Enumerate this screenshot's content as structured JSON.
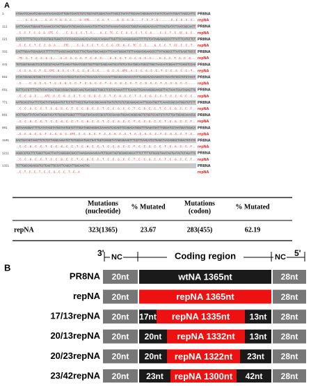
{
  "panel_a": {
    "label": "A",
    "alignment": [
      {
        "number": "1",
        "seq": "ATGAATCCAAATCAGAAAATAACAACCATTGGATCAATCTGTCTGGTAGTCGGACTAATTAGCCTAATATTGCAAATAGGGAATATAATCTCAATATGGATTAGCCATTC",
        "name": "PR8NA"
      },
      {
        "number": "",
        "seq": "......C..C..G.....C..C..T..G..C..C.....G..CTC.....C..C..T.....G..C..C..G.....T..C..T..G........C..C..G..C..C..",
        "name": "repNA"
      },
      {
        "number": "111",
        "seq": "AATTCAAACTGGAAGTCAAAACCATACTGGAATATGCAACCAAAACATCATTACCTATAAAAATAGCACCTGGGTAAAGGACACAACTTCAGTGATATTAACCGGCAATT",
        "name": "PR8NA"
      },
      {
        "number": "",
        "seq": "..C..C..T..C..G..G..CTC..C.....C..G..C..C..T..C.....G..C..TC..C..C..G..C..C..T..C..G.....C..C..T..C..CC..G..C..",
        "name": "repNA"
      },
      {
        "number": "221",
        "seq": "CATCTCTTTGTCCCATCCGTGGGTGGGCTATATACAGCAAAGACAATAGCATAAGAATTGGTTCCAAAGGAGACGTTTTTGTCATAAGAGAGCCCTTTATTTCATGTTCT",
        "name": "PR8NA"
      },
      {
        "number": "",
        "seq": "..C..C..C..T..C..C..G..A.....CTC.....C..G..C..C..T..C..C..G..CC..G..C..TC..C..C.....G..C..C..T..CC..C..C..T..",
        "name": "repNA"
      },
      {
        "number": "331",
        "seq": "CACTTGGAATGCAGGACCTTTTTCTTGACCCAAGGTGCCTTACTGAATGACAAGCATTCAAATGGGACTGTTAAGGACAGAAGCCCTTATAGGGCCTTAATGAGCTGCCC",
        "name": "PR8NA"
      },
      {
        "number": "",
        "seq": "..TC..C..T..C..C..G..C.....C..C..G..C..C..T..C..G..C.....G..C..C..T..C..C..G..C..C.....G..C..C..T..C..C..G...",
        "name": "repNA"
      },
      {
        "number": "441",
        "seq": "TGTCGGTGAAGCTCCGTCCCGTACAATTCAAGATTGAATCGGTTGCTTGGTCAGCAAGTGCATGTCATGATGGCATGGGCTGGCTAACAATCGGAATTTCAGGTCCAG",
        "name": "PR8NA"
      },
      {
        "number": "",
        "seq": "..C..C..G..C..T..C..CTC..G..C..C..T..C..C..G..C..C.....G..C..C..GTC..A..C..C..G..C..C..T..C..C..G..C..C..T..",
        "name": "repNA"
      },
      {
        "number": "551",
        "seq": "ATAATGGAGCAGTGGCTGTATTAAAATACAATGGCATAATAACTGAAACCATAAAAAGTTGGAGGAAGAAAATATTGAGGACACAAGAGTCTGAATGTGCCTGTGTAAAT",
        "name": "PR8NA"
      },
      {
        "number": "",
        "seq": "..C.....C..G..C..C..T..C..C..G..C..C..T..C..G..C..C..T..C..C..G..C..C..T..C..G..C..C..T..C..C..G..C..C.....",
        "name": "repNA"
      },
      {
        "number": "661",
        "seq": "GGTTCATGTTTTACTATAATGACTGGCCCGGATGGGCCAAGTGACGGGCTGGCCTCGTACAAAATTTTCAAGATCGAAAAGGGGAAGGTTACTAAATCAATAGAGTTG",
        "name": "PR8NA"
      },
      {
        "number": "",
        "seq": "..C..C..G..C.....ATC..C..C..G..C..C..T..C..C..G..C..C..T..C..G..C..C..T..C..C..G..C..C..T..C..C..G..C..C..",
        "name": "repNA"
      },
      {
        "number": "771",
        "seq": "AATGCACCTAATTCTCACTATGAGGAATGTTCCTGTTACCCTGATACCGGCAAAGTGATGTGTGTGTGCAGAGACAATTGGCATGGTTCAAACCGGCCATGGGTGTCTT",
        "name": "PR8NA"
      },
      {
        "number": "",
        "seq": "..C..C..G..C..C..T..C..G..C..C..T..C..C..G..C..C..T..C..C..G..C..C..T..C..G..C..C..T..C..C..G..C..C..T..",
        "name": "repNA"
      },
      {
        "number": "881",
        "seq": "ACCTGGATTATCAATAGGATACATCTGCAGTGGGGTTTTCGGTGACAACCCGCGTCCCGAAGATGGAACAGGCAGCTGTGGTCCAGTGTATGTTGATGGAGCAAACGG",
        "name": "PR8NA"
      },
      {
        "number": "",
        "seq": "..C..C..G..C..C..T..C..C..G..C..C..T..C..G..C..C..T..C..C..G..C..C..T..C..C..G..C..C..T..C..G..C..C..T..",
        "name": "repNA"
      },
      {
        "number": "991",
        "seq": "AGTAAAGGGATTTTCATATAGGTATGGTAATGGTGTTTGGATAGGAAGGACCAAAAGTCACAGTTCCAGACATGGGTTTGAGATGATTTGGGATCCTAATGGATGGACA",
        "name": "PR8NA"
      },
      {
        "number": "",
        "seq": "..C..C..G..C..C..T..C..C..G..C..GTC..C..C..G..C..T..C..C..G..C..C..T..C..C..G..C..C..T..C..G..C..C..T..C..",
        "name": "repNA"
      },
      {
        "number": "1101",
        "seq": "GACTGATAGTAAGTTCTCTGTTAGGCAAGATGTTGTGGCAATGACTGATTGGTCAGGGTATAGCGGAAGTTTCGTTCAACATCCTGAGCTAACAGGGCTAGACTGTATG",
        "name": "PR8NA"
      },
      {
        "number": "",
        "seq": "..C..C..G..C..C..T..C..C..G..C..C..T..C..G..C..C..T..C..C..G..C..C..T..C..C..G..C..C..T..C..G..C..C..T..",
        "name": "repNA"
      },
      {
        "number": "1211",
        "seq": "AGGCCGTGCTTCTGGGTTGAATTAATCAGGGGACGACCTAAAGAAAAAACAATCTGGACTAGTGCGAGCAGCATTTCTTTTTGTGGCGTGAATAGTGATACTGTAGATTG",
        "name": "PR8NA"
      },
      {
        "number": "",
        "seq": "..C..C..G..C..C..T..C..C..G..C..C..T..C..G..C..C..T..C..C..G..C..C..T..C..C..G..C..C..T..C..G..C..C..T..",
        "name": "repNA"
      },
      {
        "number": "1321",
        "seq": "TCTTGGCCAGACGGTGCTGAGTTGCCATTCAGCATTGACAAGTAG",
        "name": "PR8NA"
      },
      {
        "number": "",
        "seq": "..C..T..C..C..T..C..C..G..C..C..T..C..A",
        "name": "repNA"
      }
    ],
    "table": {
      "headers": [
        [],
        [
          "Mutations",
          "(nucleotide)"
        ],
        [
          "% Mutated"
        ],
        [
          "Mutations",
          "(codon)"
        ],
        [
          "% Mutated"
        ]
      ],
      "rows": [
        [
          "repNA",
          "323(1365)",
          "23.67",
          "283(455)",
          "62.19"
        ]
      ]
    }
  },
  "panel_b": {
    "label": "B",
    "header": {
      "left_end": "3'",
      "left_nc": "NC",
      "coding": "Coding region",
      "right_nc": "NC",
      "right_end": "5'"
    },
    "constructs": [
      {
        "name": "PR8NA",
        "segments": [
          {
            "text": "20nt",
            "color": "#777777"
          },
          {
            "text": "wtNA 1365nt",
            "color": "#1a1a1a"
          },
          {
            "text": "28nt",
            "color": "#777777"
          }
        ]
      },
      {
        "name": "repNA",
        "segments": [
          {
            "text": "20nt",
            "color": "#777777"
          },
          {
            "text": "repNA 1365nt",
            "color": "#ee1111"
          },
          {
            "text": "28nt",
            "color": "#777777"
          }
        ]
      },
      {
        "name": "17/13repNA",
        "segments": [
          {
            "text": "20nt",
            "color": "#777777"
          },
          {
            "text": "17nt",
            "color": "#1a1a1a"
          },
          {
            "text": "repNA 1335nt",
            "color": "#ee1111"
          },
          {
            "text": "13nt",
            "color": "#1a1a1a"
          },
          {
            "text": "28nt",
            "color": "#777777"
          }
        ]
      },
      {
        "name": "20/13repNA",
        "segments": [
          {
            "text": "20nt",
            "color": "#777777"
          },
          {
            "text": "20nt",
            "color": "#1a1a1a"
          },
          {
            "text": "repNA 1332nt",
            "color": "#ee1111"
          },
          {
            "text": "13nt",
            "color": "#1a1a1a"
          },
          {
            "text": "28nt",
            "color": "#777777"
          }
        ]
      },
      {
        "name": "20/23repNA",
        "segments": [
          {
            "text": "20nt",
            "color": "#777777"
          },
          {
            "text": "20nt",
            "color": "#1a1a1a"
          },
          {
            "text": "repNA 1322nt",
            "color": "#ee1111"
          },
          {
            "text": "23nt",
            "color": "#1a1a1a"
          },
          {
            "text": "28nt",
            "color": "#777777"
          }
        ]
      },
      {
        "name": "23/42repNA",
        "segments": [
          {
            "text": "20nt",
            "color": "#777777"
          },
          {
            "text": "23nt",
            "color": "#1a1a1a"
          },
          {
            "text": "repNA 1300nt",
            "color": "#ee1111"
          },
          {
            "text": "42nt",
            "color": "#1a1a1a"
          },
          {
            "text": "28nt",
            "color": "#777777"
          }
        ]
      }
    ]
  }
}
